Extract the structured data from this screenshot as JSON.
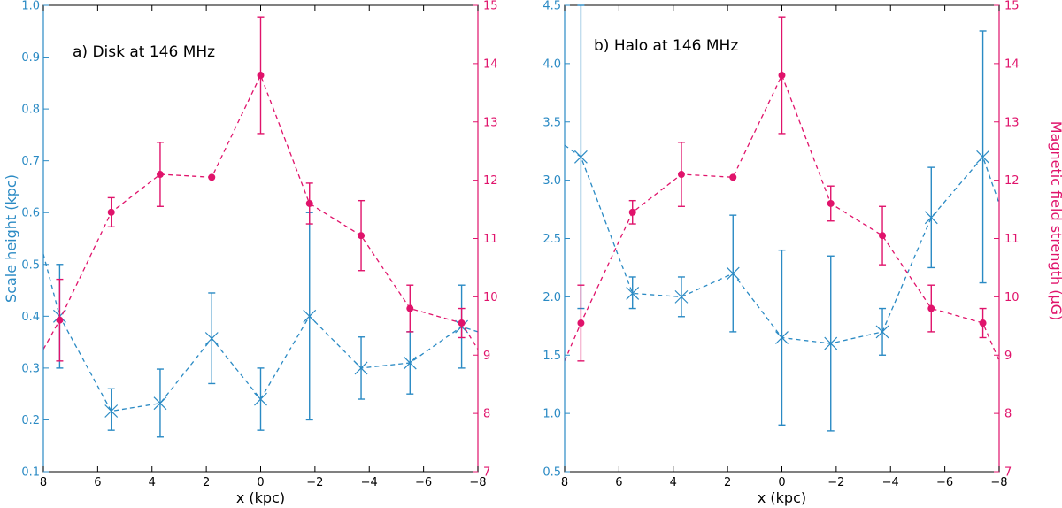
{
  "colors": {
    "scale_height": "#2a8ac4",
    "magnetic": "#e0136b",
    "axis": "#000000"
  },
  "chart_data": [
    {
      "type": "line",
      "title": "a) Disk at 146 MHz",
      "xlabel": "x (kpc)",
      "ylabel_left": "Scale height (kpc)",
      "ylabel_right": "",
      "xlim": [
        8,
        -8
      ],
      "ylim_left": [
        0.1,
        1.0
      ],
      "ylim_right": [
        7,
        15
      ],
      "x_ticks": [
        8,
        6,
        4,
        2,
        0,
        -2,
        -4,
        -6,
        -8
      ],
      "x_tick_labels": [
        "8",
        "6",
        "4",
        "2",
        "0",
        "−2",
        "−4",
        "−6",
        "−8"
      ],
      "y_left_ticks": [
        0.1,
        0.2,
        0.3,
        0.4,
        0.5,
        0.6,
        0.7,
        0.8,
        0.9,
        1.0
      ],
      "y_left_tick_labels": [
        "0.1",
        "0.2",
        "0.3",
        "0.4",
        "0.5",
        "0.6",
        "0.7",
        "0.8",
        "0.9",
        "1.0"
      ],
      "y_right_ticks": [
        7,
        8,
        9,
        10,
        11,
        12,
        13,
        14,
        15
      ],
      "y_right_tick_labels": [
        "7",
        "8",
        "9",
        "10",
        "11",
        "12",
        "13",
        "14",
        "15"
      ],
      "grid": false,
      "series": [
        {
          "name": "Scale height",
          "axis": "left",
          "marker": "x",
          "x": [
            7.4,
            5.5,
            3.7,
            1.8,
            0.0,
            -1.8,
            -3.7,
            -5.5,
            -7.4
          ],
          "y": [
            0.4,
            0.217,
            0.232,
            0.357,
            0.24,
            0.4,
            0.3,
            0.31,
            0.38
          ],
          "err": [
            [
              0.1,
              0.1
            ],
            [
              0.037,
              0.043
            ],
            [
              0.065,
              0.066
            ],
            [
              0.087,
              0.088
            ],
            [
              0.06,
              0.06
            ],
            [
              0.2,
              0.2
            ],
            [
              0.06,
              0.06
            ],
            [
              0.06,
              0.06
            ],
            [
              0.08,
              0.08
            ]
          ],
          "extend_left": 0.52,
          "extend_right": 0.37
        },
        {
          "name": "Magnetic field strength",
          "axis": "right",
          "marker": "o",
          "x": [
            7.4,
            5.5,
            3.7,
            1.8,
            0.0,
            -1.8,
            -3.7,
            -5.5,
            -7.4
          ],
          "y": [
            9.6,
            11.45,
            12.1,
            12.05,
            13.8,
            11.6,
            11.05,
            9.8,
            9.55
          ],
          "err": [
            [
              0.7,
              0.7
            ],
            [
              0.25,
              0.25
            ],
            [
              0.55,
              0.55
            ],
            [
              0.0,
              0.0
            ],
            [
              1.0,
              1.0
            ],
            [
              0.35,
              0.35
            ],
            [
              0.6,
              0.6
            ],
            [
              0.4,
              0.4
            ],
            [
              0.25,
              0.25
            ]
          ],
          "extend_left": 9.1,
          "extend_right": 9.1
        }
      ]
    },
    {
      "type": "line",
      "title": "b) Halo at 146 MHz",
      "xlabel": "x (kpc)",
      "ylabel_left": "",
      "ylabel_right": "Magnetic field strength (μG)",
      "xlim": [
        8,
        -8
      ],
      "ylim_left": [
        0.5,
        4.5
      ],
      "ylim_right": [
        7,
        15
      ],
      "x_ticks": [
        8,
        6,
        4,
        2,
        0,
        -2,
        -4,
        -6,
        -8
      ],
      "x_tick_labels": [
        "8",
        "6",
        "4",
        "2",
        "0",
        "−2",
        "−4",
        "−6",
        "−8"
      ],
      "y_left_ticks": [
        0.5,
        1.0,
        1.5,
        2.0,
        2.5,
        3.0,
        3.5,
        4.0,
        4.5
      ],
      "y_left_tick_labels": [
        "0.5",
        "1.0",
        "1.5",
        "2.0",
        "2.5",
        "3.0",
        "3.5",
        "4.0",
        "4.5"
      ],
      "y_right_ticks": [
        7,
        8,
        9,
        10,
        11,
        12,
        13,
        14,
        15
      ],
      "y_right_tick_labels": [
        "7",
        "8",
        "9",
        "10",
        "11",
        "12",
        "13",
        "14",
        "15"
      ],
      "grid": false,
      "series": [
        {
          "name": "Scale height",
          "axis": "left",
          "marker": "x",
          "x": [
            7.4,
            5.5,
            3.7,
            1.8,
            0.0,
            -1.8,
            -3.7,
            -5.5,
            -7.4
          ],
          "y": [
            3.2,
            2.03,
            2.0,
            2.2,
            1.65,
            1.6,
            1.7,
            2.68,
            3.2
          ],
          "err": [
            [
              1.3,
              1.3
            ],
            [
              0.13,
              0.14
            ],
            [
              0.17,
              0.17
            ],
            [
              0.5,
              0.5
            ],
            [
              0.75,
              0.75
            ],
            [
              0.75,
              0.75
            ],
            [
              0.2,
              0.2
            ],
            [
              0.43,
              0.43
            ],
            [
              1.08,
              1.08
            ]
          ],
          "extend_left": 3.3,
          "extend_right": 2.8
        },
        {
          "name": "Magnetic field strength",
          "axis": "right",
          "marker": "o",
          "x": [
            7.4,
            5.5,
            3.7,
            1.8,
            0.0,
            -1.8,
            -3.7,
            -5.5,
            -7.4
          ],
          "y": [
            9.55,
            11.45,
            12.1,
            12.05,
            13.8,
            11.6,
            11.05,
            9.8,
            9.55
          ],
          "err": [
            [
              0.65,
              0.65
            ],
            [
              0.2,
              0.2
            ],
            [
              0.55,
              0.55
            ],
            [
              0.0,
              0.0
            ],
            [
              1.0,
              1.0
            ],
            [
              0.3,
              0.3
            ],
            [
              0.5,
              0.5
            ],
            [
              0.4,
              0.4
            ],
            [
              0.25,
              0.25
            ]
          ],
          "extend_left": 8.9,
          "extend_right": 8.9
        }
      ]
    }
  ]
}
